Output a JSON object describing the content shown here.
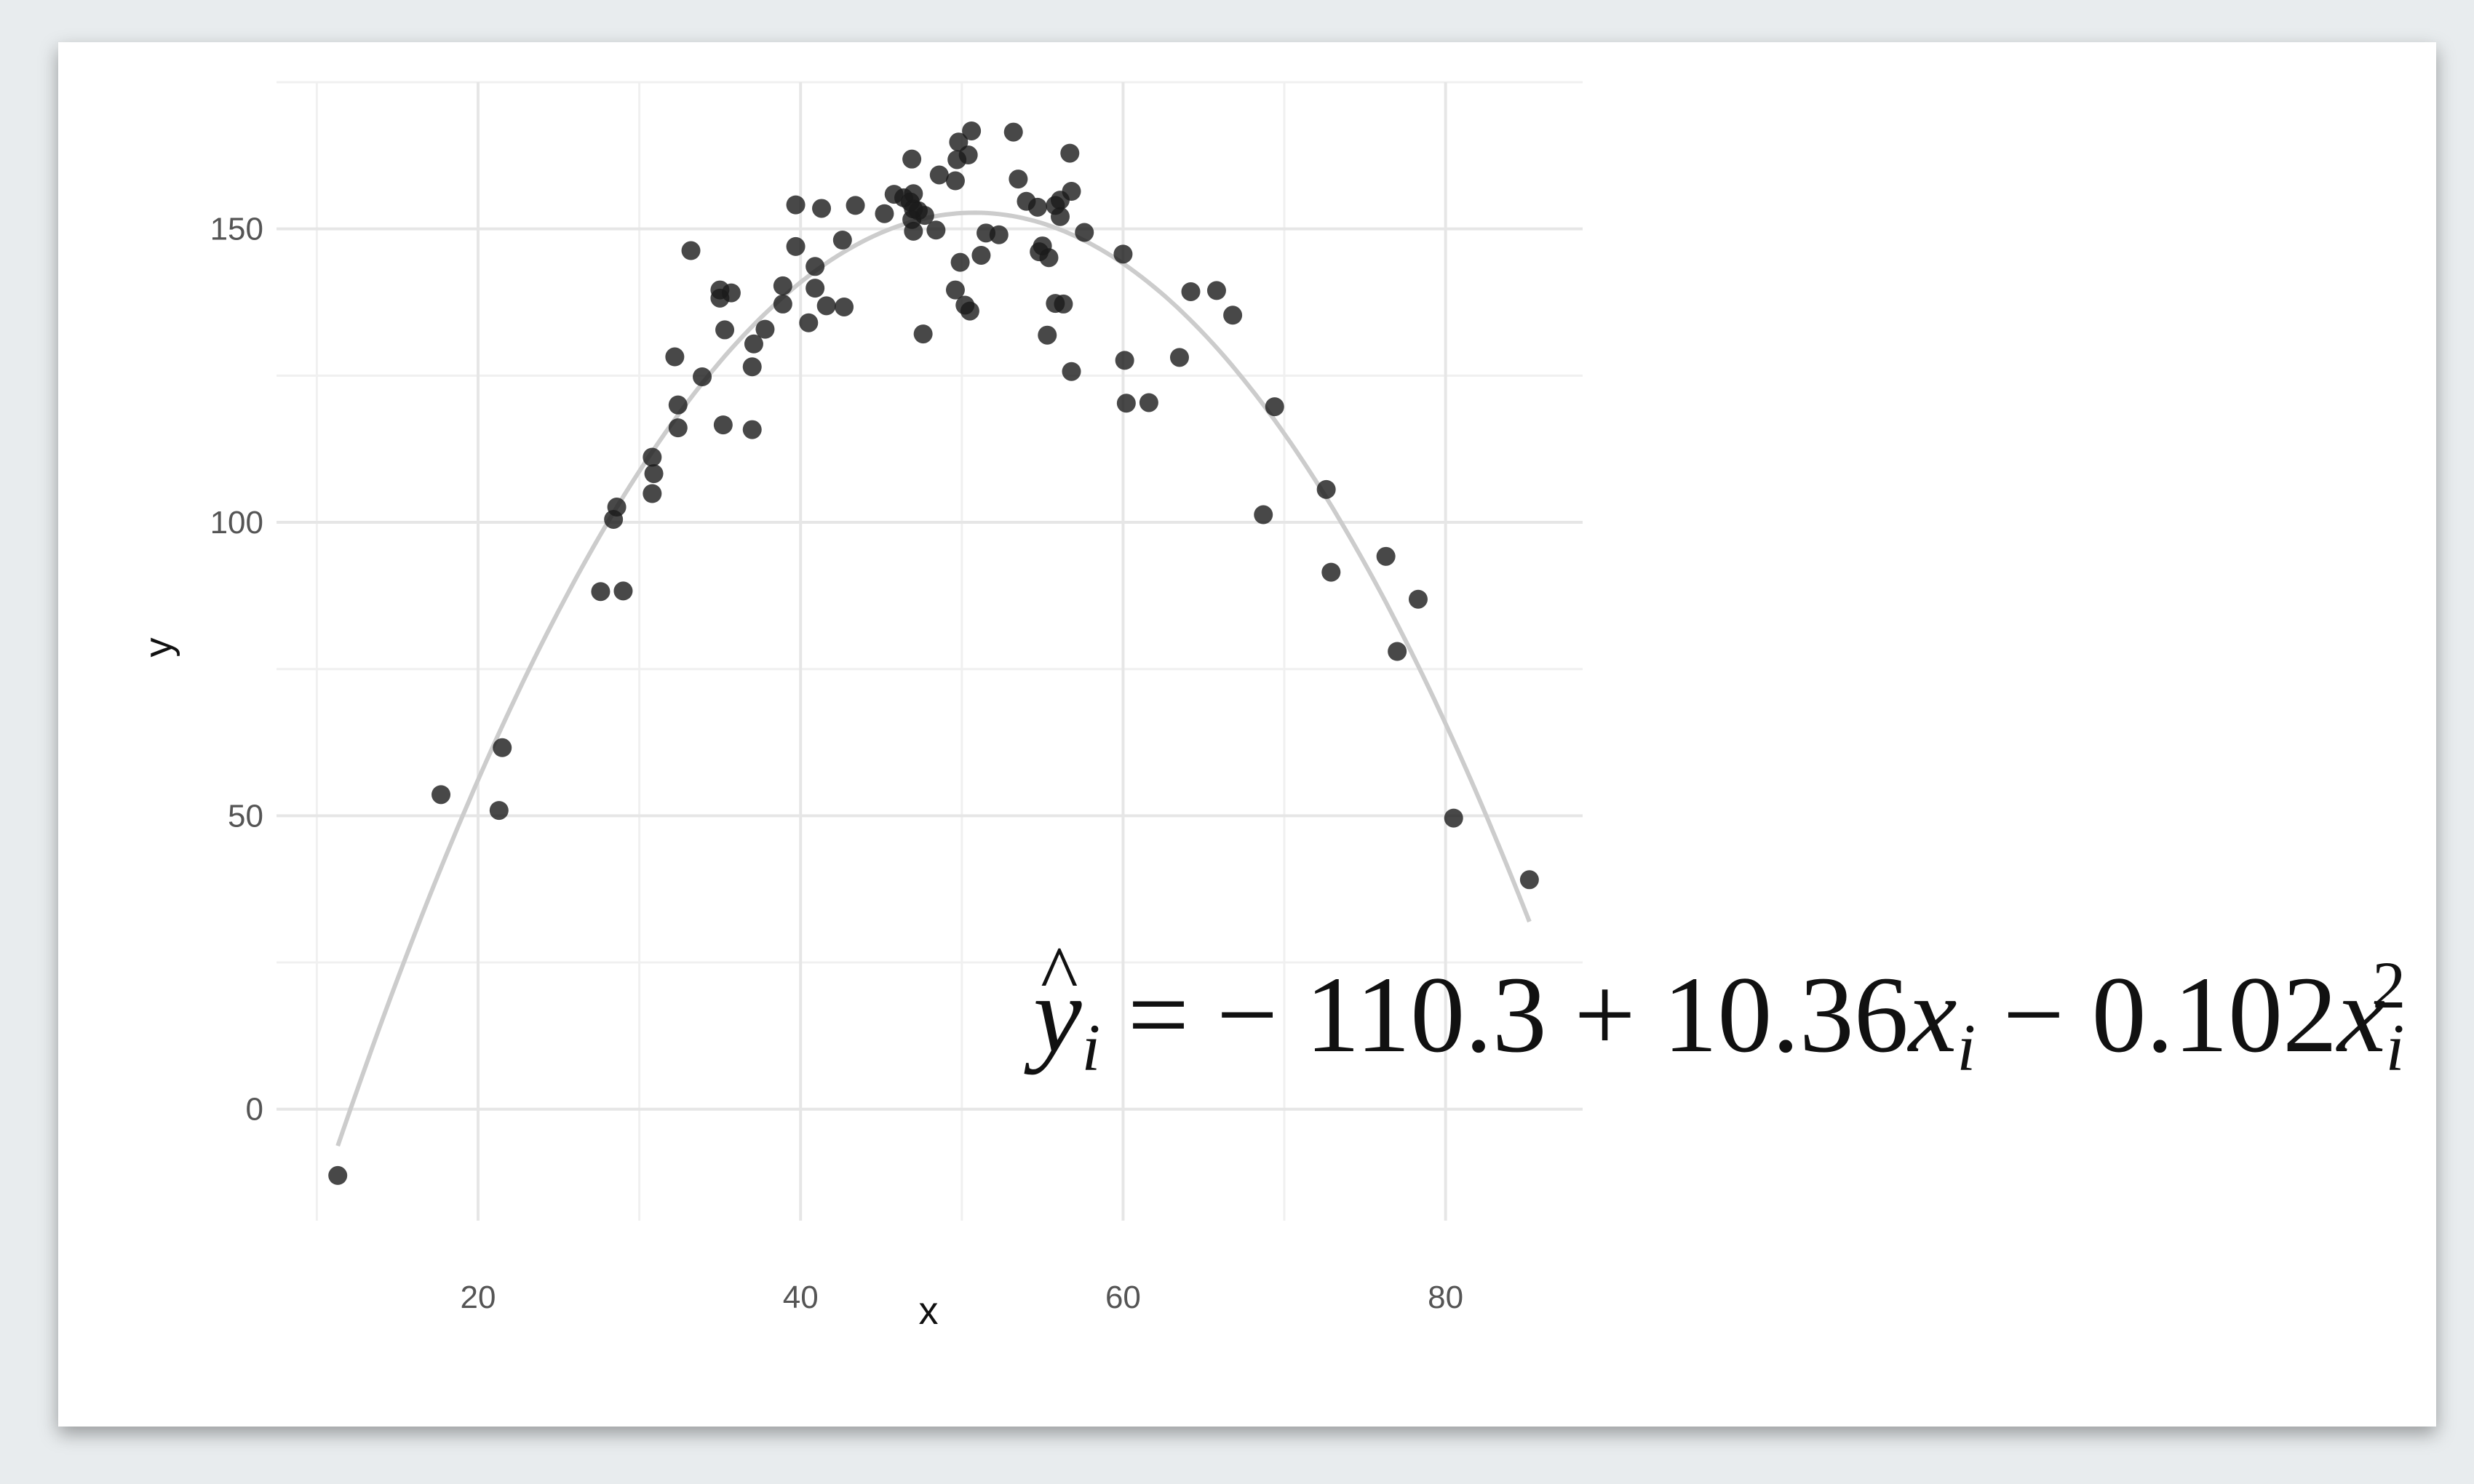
{
  "chart_data": {
    "type": "scatter",
    "xlabel": "x",
    "ylabel": "y",
    "xlim": [
      7.5,
      88.5
    ],
    "ylim": [
      -19,
      175
    ],
    "x_ticks": [
      20,
      40,
      60,
      80
    ],
    "y_ticks": [
      0,
      50,
      100,
      150
    ],
    "grid": true,
    "point_color": "#1a1a1a",
    "fit_color": "#cccccc",
    "points": [
      [
        11.3,
        -11.3
      ],
      [
        17.7,
        53.6
      ],
      [
        21.5,
        61.6
      ],
      [
        21.3,
        50.9
      ],
      [
        27.6,
        88.2
      ],
      [
        29.0,
        88.3
      ],
      [
        28.4,
        100.5
      ],
      [
        28.6,
        102.6
      ],
      [
        30.8,
        104.9
      ],
      [
        30.9,
        108.3
      ],
      [
        30.8,
        111.1
      ],
      [
        32.4,
        116.1
      ],
      [
        32.4,
        120.0
      ],
      [
        32.2,
        128.2
      ],
      [
        33.9,
        124.8
      ],
      [
        33.2,
        146.3
      ],
      [
        35.0,
        138.2
      ],
      [
        35.0,
        139.6
      ],
      [
        35.7,
        139.1
      ],
      [
        35.3,
        132.8
      ],
      [
        35.2,
        116.6
      ],
      [
        37.1,
        130.4
      ],
      [
        37.0,
        126.5
      ],
      [
        37.0,
        115.8
      ],
      [
        37.8,
        132.9
      ],
      [
        38.9,
        140.3
      ],
      [
        38.9,
        137.2
      ],
      [
        39.7,
        147.0
      ],
      [
        39.7,
        154.1
      ],
      [
        40.5,
        134.0
      ],
      [
        40.9,
        139.9
      ],
      [
        40.9,
        143.6
      ],
      [
        41.3,
        153.5
      ],
      [
        41.6,
        136.9
      ],
      [
        42.7,
        136.7
      ],
      [
        42.6,
        148.1
      ],
      [
        43.4,
        154.0
      ],
      [
        45.2,
        152.6
      ],
      [
        45.8,
        155.9
      ],
      [
        46.4,
        155.3
      ],
      [
        46.8,
        154.6
      ],
      [
        46.9,
        151.6
      ],
      [
        47.0,
        156.0
      ],
      [
        47.0,
        153.4
      ],
      [
        47.3,
        153.1
      ],
      [
        47.0,
        149.6
      ],
      [
        47.7,
        152.3
      ],
      [
        48.4,
        149.8
      ],
      [
        47.6,
        132.1
      ],
      [
        46.9,
        161.9
      ],
      [
        48.6,
        159.2
      ],
      [
        49.6,
        158.2
      ],
      [
        49.7,
        161.8
      ],
      [
        49.8,
        164.8
      ],
      [
        50.4,
        162.6
      ],
      [
        50.6,
        166.7
      ],
      [
        49.6,
        139.6
      ],
      [
        49.9,
        144.3
      ],
      [
        50.2,
        137.0
      ],
      [
        50.5,
        136.0
      ],
      [
        51.2,
        145.5
      ],
      [
        51.5,
        149.3
      ],
      [
        52.3,
        149.0
      ],
      [
        53.2,
        166.5
      ],
      [
        53.5,
        158.5
      ],
      [
        54.0,
        154.7
      ],
      [
        54.7,
        153.7
      ],
      [
        55.0,
        147.1
      ],
      [
        54.8,
        146.1
      ],
      [
        55.4,
        145.1
      ],
      [
        55.8,
        154.0
      ],
      [
        56.1,
        154.9
      ],
      [
        56.1,
        152.1
      ],
      [
        56.7,
        162.9
      ],
      [
        56.8,
        156.4
      ],
      [
        57.6,
        149.4
      ],
      [
        55.8,
        137.3
      ],
      [
        56.3,
        137.2
      ],
      [
        55.3,
        131.9
      ],
      [
        56.8,
        125.7
      ],
      [
        60.0,
        145.7
      ],
      [
        60.1,
        127.6
      ],
      [
        60.2,
        120.3
      ],
      [
        61.6,
        120.4
      ],
      [
        63.5,
        128.1
      ],
      [
        64.2,
        139.3
      ],
      [
        65.8,
        139.5
      ],
      [
        66.8,
        135.3
      ],
      [
        69.4,
        119.7
      ],
      [
        68.7,
        101.3
      ],
      [
        72.6,
        105.6
      ],
      [
        72.9,
        91.5
      ],
      [
        76.3,
        94.2
      ],
      [
        77.0,
        78.0
      ],
      [
        78.3,
        86.9
      ],
      [
        80.5,
        49.6
      ],
      [
        85.2,
        39.1
      ]
    ],
    "fit": {
      "intercept": -110.3,
      "b1": 10.36,
      "b2": -0.102,
      "x_range": [
        11.3,
        85.2
      ]
    }
  },
  "equation": {
    "lhs": "y",
    "lhs_sub": "i",
    "eq": " = − 110.3 + 10.36",
    "var1": "x",
    "var1_sub": "i",
    "minus": " − 0.102",
    "var2": "x",
    "var2_sub": "i",
    "var2_sup": "2"
  }
}
